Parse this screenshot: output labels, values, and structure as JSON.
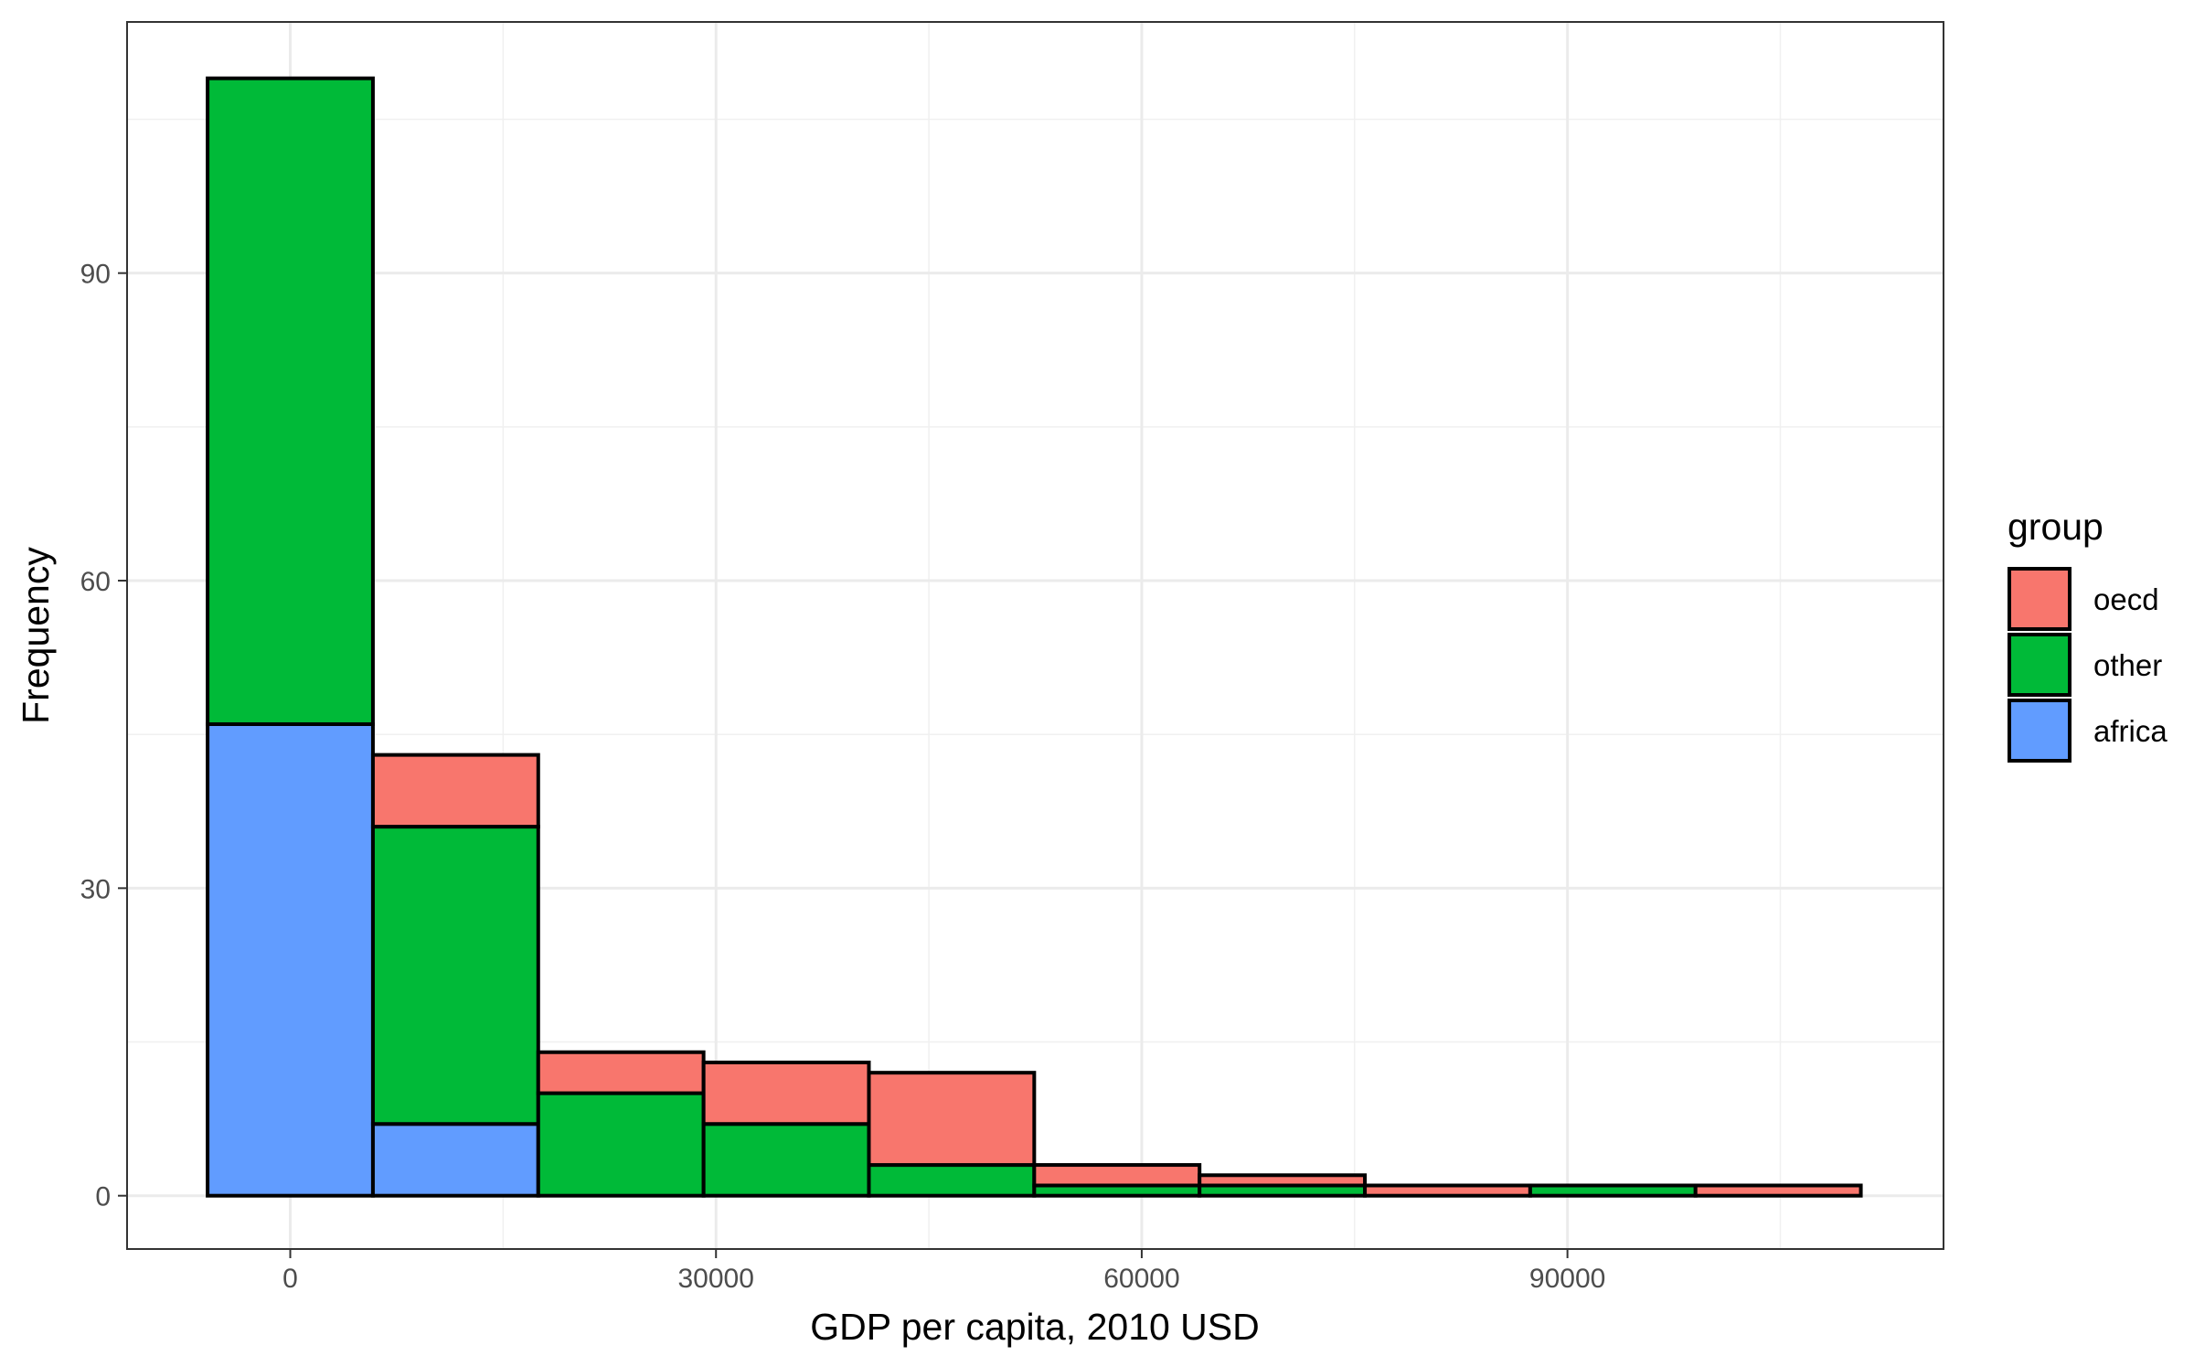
{
  "chart_data": {
    "type": "bar",
    "stacked": true,
    "histogram": true,
    "xlabel": "GDP per capita, 2010 USD",
    "ylabel": "Frequency",
    "bin_width": 11650,
    "bin_centers": [
      0,
      11650,
      23300,
      34950,
      46600,
      58250,
      69900,
      81550,
      93200,
      104850
    ],
    "x_ticks": [
      0,
      30000,
      60000,
      90000
    ],
    "y_ticks": [
      0,
      30,
      60,
      90
    ],
    "xlim": [
      -11500,
      116500
    ],
    "ylim": [
      -5.2,
      114.5
    ],
    "grid": true,
    "series": [
      {
        "name": "africa",
        "color": "#619CFF",
        "values": [
          46,
          7,
          0,
          0,
          0,
          0,
          0,
          0,
          0,
          0
        ]
      },
      {
        "name": "other",
        "color": "#00BA38",
        "values": [
          63,
          29,
          10,
          7,
          3,
          1,
          1,
          0,
          1,
          0
        ]
      },
      {
        "name": "oecd",
        "color": "#F8766D",
        "values": [
          0,
          7,
          4,
          6,
          9,
          2,
          1,
          1,
          0,
          1
        ]
      }
    ],
    "legend": {
      "title": "group",
      "position": "right",
      "order": [
        "oecd",
        "other",
        "africa"
      ]
    }
  }
}
